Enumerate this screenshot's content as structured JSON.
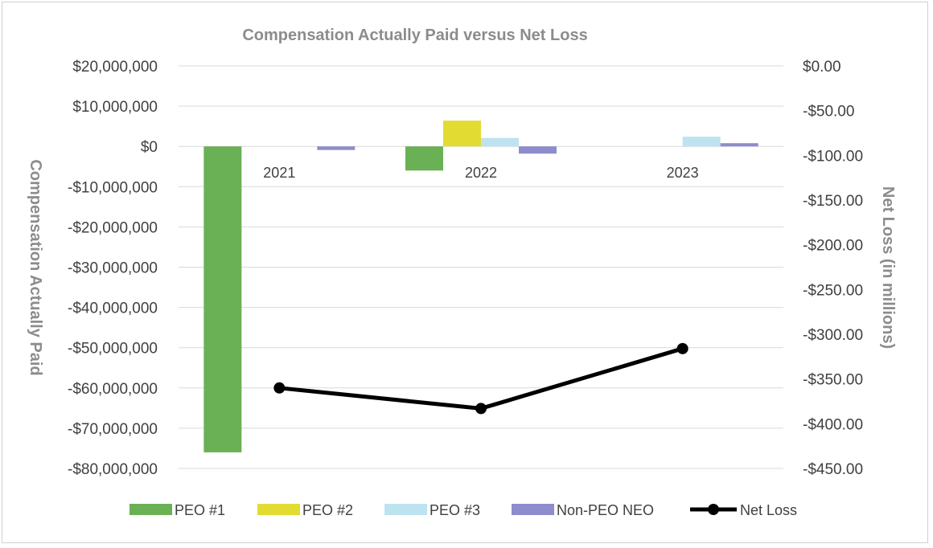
{
  "chart_data": {
    "type": "bar",
    "title": "Compensation Actually Paid versus Net Loss",
    "categories": [
      "2021",
      "2022",
      "2023"
    ],
    "ylabel": "Compensation Actually Paid",
    "y2label": "Net Loss (in millions)",
    "ylim": [
      -80000000,
      20000000
    ],
    "y2lim": [
      -450,
      0
    ],
    "yticks": [
      {
        "value": 20000000,
        "label": "$20,000,000"
      },
      {
        "value": 10000000,
        "label": "$10,000,000"
      },
      {
        "value": 0,
        "label": "$0"
      },
      {
        "value": -10000000,
        "label": "-$10,000,000"
      },
      {
        "value": -20000000,
        "label": "-$20,000,000"
      },
      {
        "value": -30000000,
        "label": "-$30,000,000"
      },
      {
        "value": -40000000,
        "label": "-$40,000,000"
      },
      {
        "value": -50000000,
        "label": "-$50,000,000"
      },
      {
        "value": -60000000,
        "label": "-$60,000,000"
      },
      {
        "value": -70000000,
        "label": "-$70,000,000"
      },
      {
        "value": -80000000,
        "label": "-$80,000,000"
      }
    ],
    "y2ticks": [
      {
        "value": 0,
        "label": "$0.00"
      },
      {
        "value": -50,
        "label": "-$50.00"
      },
      {
        "value": -100,
        "label": "-$100.00"
      },
      {
        "value": -150,
        "label": "-$150.00"
      },
      {
        "value": -200,
        "label": "-$200.00"
      },
      {
        "value": -250,
        "label": "-$250.00"
      },
      {
        "value": -300,
        "label": "-$300.00"
      },
      {
        "value": -350,
        "label": "-$350.00"
      },
      {
        "value": -400,
        "label": "-$400.00"
      },
      {
        "value": -450,
        "label": "-$450.00"
      }
    ],
    "series": [
      {
        "name": "PEO #1",
        "color": "#6ab155",
        "values": [
          -76000000,
          -6000000,
          0
        ]
      },
      {
        "name": "PEO #2",
        "color": "#e2dc32",
        "values": [
          0,
          6400000,
          0
        ]
      },
      {
        "name": "PEO #3",
        "color": "#bde3f0",
        "values": [
          0,
          2100000,
          2400000
        ]
      },
      {
        "name": "Non-PEO NEO",
        "color": "#8e8ccc",
        "values": [
          -900000,
          -1800000,
          800000
        ]
      }
    ],
    "line_series": {
      "name": "Net Loss",
      "color": "#000000",
      "axis": "secondary",
      "values": [
        -360,
        -383,
        -316
      ]
    },
    "legend_position": "bottom",
    "grid": true
  }
}
